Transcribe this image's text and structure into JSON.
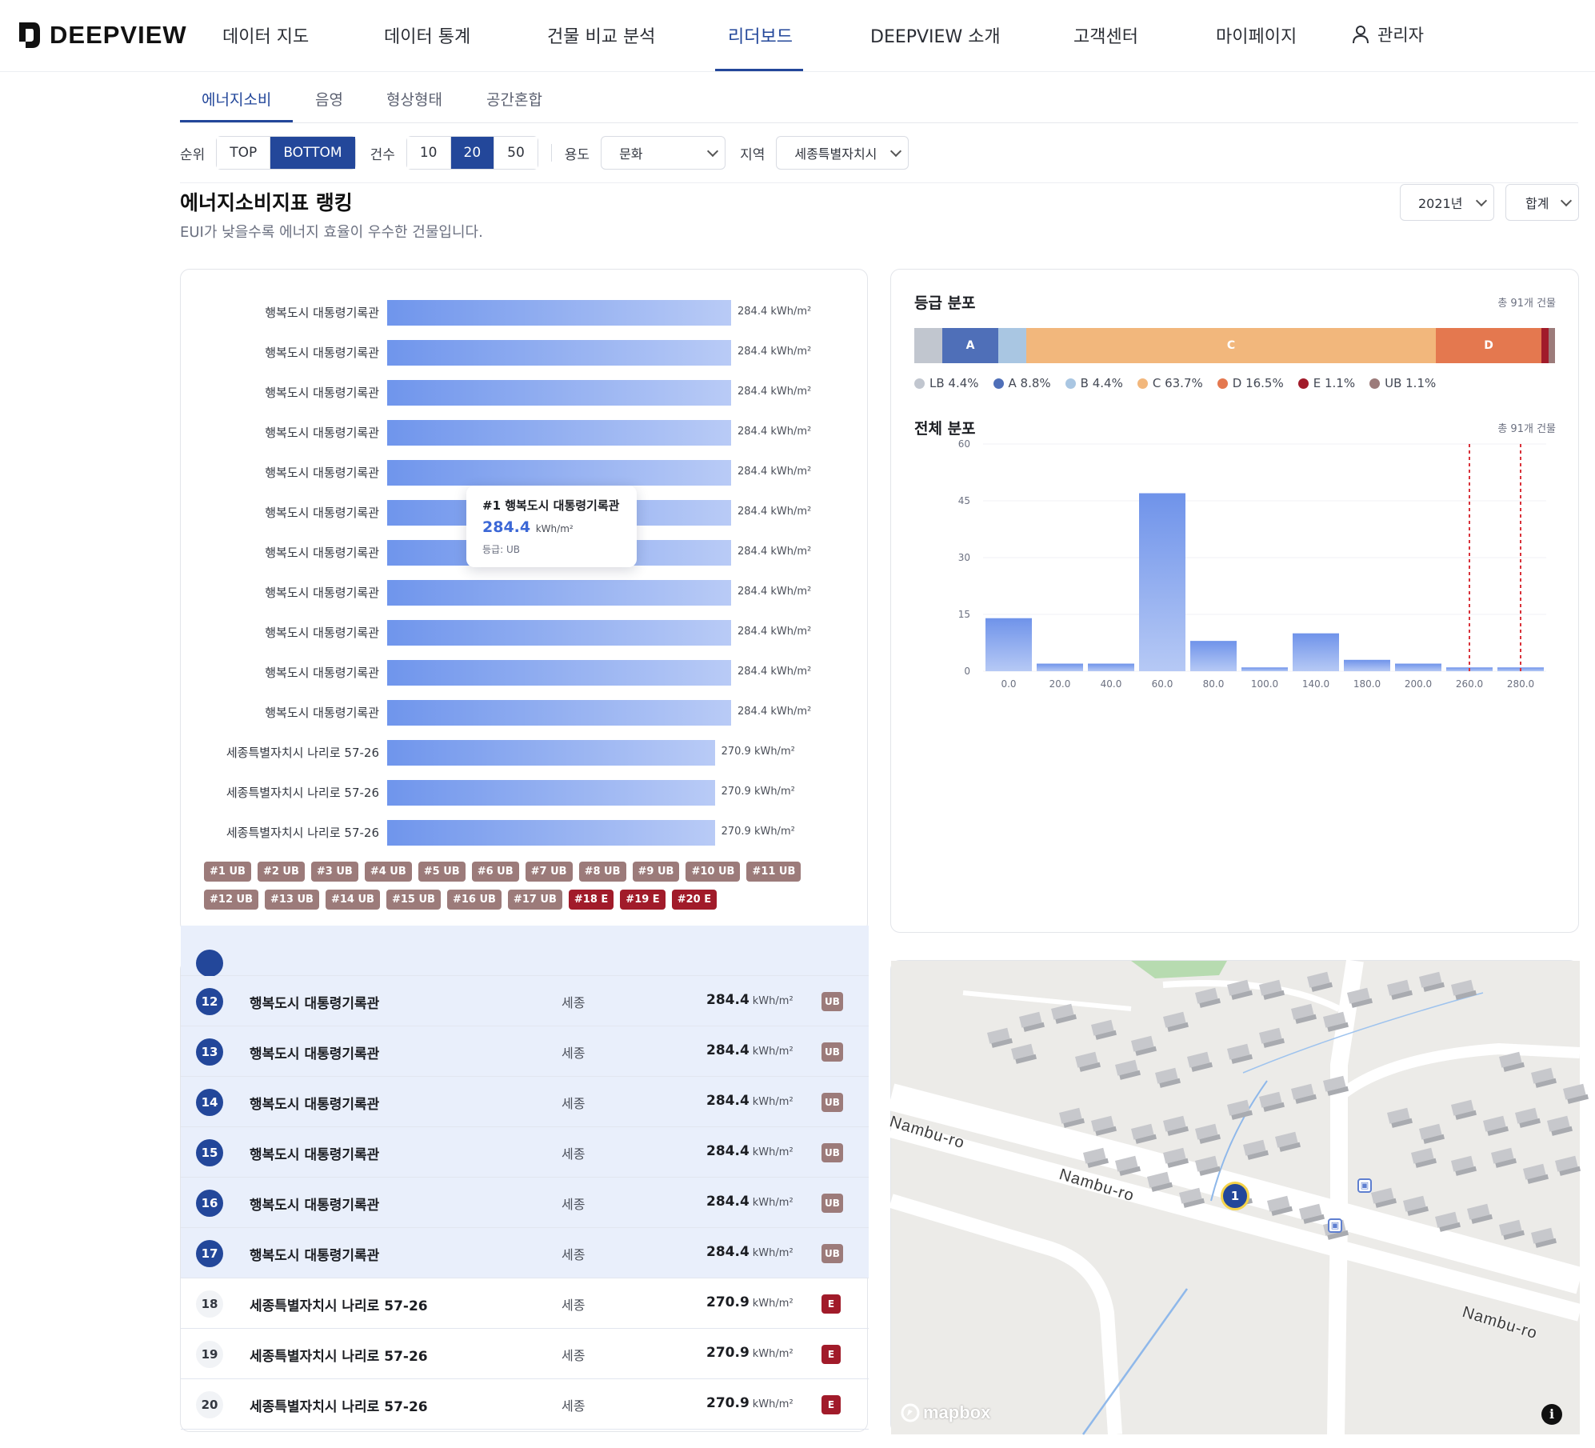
{
  "logo": {
    "text": "DEEPVIEW"
  },
  "nav": {
    "items": [
      {
        "label": "데이터 지도",
        "active": false
      },
      {
        "label": "데이터 통계",
        "active": false
      },
      {
        "label": "건물 비교 분석",
        "active": false
      },
      {
        "label": "리더보드",
        "active": true
      },
      {
        "label": "DEEPVIEW 소개",
        "active": false
      },
      {
        "label": "고객센터",
        "active": false
      },
      {
        "label": "마이페이지",
        "active": false
      }
    ],
    "user_label": "관리자",
    "user_icon": "user-icon"
  },
  "subtabs": [
    {
      "label": "에너지소비",
      "active": true
    },
    {
      "label": "음영",
      "active": false
    },
    {
      "label": "형상형태",
      "active": false
    },
    {
      "label": "공간혼합",
      "active": false
    }
  ],
  "filters": {
    "rank_label": "순위",
    "rank_options": [
      "TOP",
      "BOTTOM"
    ],
    "rank_selected": "BOTTOM",
    "count_label": "건수",
    "count_options": [
      "10",
      "20",
      "50"
    ],
    "count_selected": "20",
    "use_label": "용도",
    "use_value": "문화",
    "region_label": "지역",
    "region_value": "세종특별자치시"
  },
  "header": {
    "title": "에너지소비지표 랭킹",
    "subtitle": "EUI가 낮을수록 에너지 효율이 우수한 건물입니다.",
    "year": "2021년",
    "aggregate": "합계"
  },
  "ranking": {
    "unit": "kWh/m²",
    "rows": [
      {
        "name": "행복도시 대통령기록관",
        "value": 284.4
      },
      {
        "name": "행복도시 대통령기록관",
        "value": 284.4
      },
      {
        "name": "행복도시 대통령기록관",
        "value": 284.4
      },
      {
        "name": "행복도시 대통령기록관",
        "value": 284.4
      },
      {
        "name": "행복도시 대통령기록관",
        "value": 284.4
      },
      {
        "name": "행복도시 대통령기록관",
        "value": 284.4
      },
      {
        "name": "행복도시 대통령기록관",
        "value": 284.4
      },
      {
        "name": "행복도시 대통령기록관",
        "value": 284.4
      },
      {
        "name": "행복도시 대통령기록관",
        "value": 284.4
      },
      {
        "name": "행복도시 대통령기록관",
        "value": 284.4
      },
      {
        "name": "행복도시 대통령기록관",
        "value": 284.4
      },
      {
        "name": "세종특별자치시 나리로 57-26",
        "value": 270.9
      },
      {
        "name": "세종특별자치시 나리로 57-26",
        "value": 270.9
      },
      {
        "name": "세종특별자치시 나리로 57-26",
        "value": 270.9
      }
    ],
    "tooltip": {
      "title": "#1 행복도시 대통령기록관",
      "value": "284.4",
      "unit": "kWh/m²",
      "grade": "등급: UB"
    },
    "chips": [
      {
        "label": "#1 UB",
        "grade": "UB"
      },
      {
        "label": "#2 UB",
        "grade": "UB"
      },
      {
        "label": "#3 UB",
        "grade": "UB"
      },
      {
        "label": "#4 UB",
        "grade": "UB"
      },
      {
        "label": "#5 UB",
        "grade": "UB"
      },
      {
        "label": "#6 UB",
        "grade": "UB"
      },
      {
        "label": "#7 UB",
        "grade": "UB"
      },
      {
        "label": "#8 UB",
        "grade": "UB"
      },
      {
        "label": "#9 UB",
        "grade": "UB"
      },
      {
        "label": "#10 UB",
        "grade": "UB"
      },
      {
        "label": "#11 UB",
        "grade": "UB"
      },
      {
        "label": "#12 UB",
        "grade": "UB"
      },
      {
        "label": "#13 UB",
        "grade": "UB"
      },
      {
        "label": "#14 UB",
        "grade": "UB"
      },
      {
        "label": "#15 UB",
        "grade": "UB"
      },
      {
        "label": "#16 UB",
        "grade": "UB"
      },
      {
        "label": "#17 UB",
        "grade": "UB"
      },
      {
        "label": "#18 E",
        "grade": "E"
      },
      {
        "label": "#19 E",
        "grade": "E"
      },
      {
        "label": "#20 E",
        "grade": "E"
      }
    ]
  },
  "grade_dist": {
    "title": "등급 분포",
    "count": "총 91개 건물",
    "segments": [
      {
        "key": "LB",
        "label": "",
        "pct": 4.4,
        "color": "#c1c6cf"
      },
      {
        "key": "A",
        "label": "A",
        "pct": 8.8,
        "color": "#4f6fb8"
      },
      {
        "key": "B",
        "label": "",
        "pct": 4.4,
        "color": "#a9c6e2"
      },
      {
        "key": "C",
        "label": "C",
        "pct": 63.7,
        "color": "#f2b77c"
      },
      {
        "key": "D",
        "label": "D",
        "pct": 16.5,
        "color": "#e4784f"
      },
      {
        "key": "E",
        "label": "",
        "pct": 1.1,
        "color": "#a11b2a"
      },
      {
        "key": "UB",
        "label": "",
        "pct": 1.1,
        "color": "#9c7b7a"
      }
    ],
    "legend": [
      {
        "text": "LB 4.4%",
        "color": "#c1c6cf"
      },
      {
        "text": "A 8.8%",
        "color": "#4f6fb8"
      },
      {
        "text": "B 4.4%",
        "color": "#a9c6e2"
      },
      {
        "text": "C 63.7%",
        "color": "#f2b77c"
      },
      {
        "text": "D 16.5%",
        "color": "#e4784f"
      },
      {
        "text": "E 1.1%",
        "color": "#a11b2a"
      },
      {
        "text": "UB 1.1%",
        "color": "#9c7b7a"
      }
    ]
  },
  "overall_dist": {
    "title": "전체 분포",
    "count": "총 91개 건물"
  },
  "chart_data": {
    "type": "bar",
    "title": "전체 분포",
    "categories": [
      "0.0",
      "20.0",
      "40.0",
      "60.0",
      "80.0",
      "100.0",
      "140.0",
      "180.0",
      "200.0",
      "260.0",
      "280.0"
    ],
    "values": [
      14,
      2,
      2,
      47,
      8,
      1,
      10,
      3,
      2,
      1,
      1
    ],
    "ylim": [
      0,
      60
    ],
    "yticks": [
      "0",
      "15",
      "30",
      "45",
      "60"
    ],
    "reference_lines_at": [
      "260.0",
      "280.0"
    ],
    "reference_color": "#d9323a",
    "bar_color": "#7a9cec"
  },
  "table": {
    "unit": "kWh/m²",
    "rows": [
      {
        "rank": "12",
        "name": "행복도시 대통령기록관",
        "region": "세종",
        "value": "284.4",
        "grade": "UB",
        "highlight": true
      },
      {
        "rank": "13",
        "name": "행복도시 대통령기록관",
        "region": "세종",
        "value": "284.4",
        "grade": "UB",
        "highlight": true
      },
      {
        "rank": "14",
        "name": "행복도시 대통령기록관",
        "region": "세종",
        "value": "284.4",
        "grade": "UB",
        "highlight": true
      },
      {
        "rank": "15",
        "name": "행복도시 대통령기록관",
        "region": "세종",
        "value": "284.4",
        "grade": "UB",
        "highlight": true
      },
      {
        "rank": "16",
        "name": "행복도시 대통령기록관",
        "region": "세종",
        "value": "284.4",
        "grade": "UB",
        "highlight": true
      },
      {
        "rank": "17",
        "name": "행복도시 대통령기록관",
        "region": "세종",
        "value": "284.4",
        "grade": "UB",
        "highlight": true
      },
      {
        "rank": "18",
        "name": "세종특별자치시 나리로 57-26",
        "region": "세종",
        "value": "270.9",
        "grade": "E",
        "highlight": false
      },
      {
        "rank": "19",
        "name": "세종특별자치시 나리로 57-26",
        "region": "세종",
        "value": "270.9",
        "grade": "E",
        "highlight": false
      },
      {
        "rank": "20",
        "name": "세종특별자치시 나리로 57-26",
        "region": "세종",
        "value": "270.9",
        "grade": "E",
        "highlight": false
      }
    ]
  },
  "map": {
    "road_labels": [
      "Nambu-ro",
      "Nambu-ro",
      "Nambu-ro"
    ],
    "marker_label": "1",
    "attribution": "mapbox",
    "info_label": "i"
  }
}
